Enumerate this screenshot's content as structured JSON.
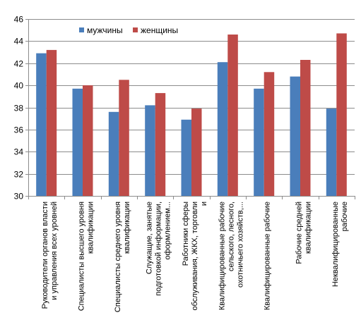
{
  "chart_data": {
    "type": "bar",
    "title": "",
    "xlabel": "",
    "ylabel": "",
    "ylim": [
      30,
      46
    ],
    "yticks": [
      "30",
      "32",
      "34",
      "36",
      "38",
      "40",
      "42",
      "44",
      "46"
    ],
    "grid": true,
    "legend_position": "top-left",
    "categories": [
      [
        "Руководители органов власти",
        "и управления всех уровней"
      ],
      [
        "Специалисты высшего уровня",
        "квалификации"
      ],
      [
        "Специалисты среднего уровня",
        "квалификации"
      ],
      [
        "Служащие, занятые",
        "подготовкой информации,",
        "оформлением..."
      ],
      [
        "Работники сферы",
        "обслуживания, ЖКХ, торговли",
        "и"
      ],
      [
        "Квалифицированные рабочие",
        "сельского, лесного,",
        "охотничьего хозяйств,..."
      ],
      [
        "Квалифицированные рабочие"
      ],
      [
        "Рабочие средней",
        "квалификации"
      ],
      [
        "Неквалифицированные",
        "рабочие"
      ]
    ],
    "series": [
      {
        "name": "мужчины",
        "color": "#4a7ebb",
        "values": [
          42.9,
          39.7,
          37.6,
          38.2,
          36.9,
          42.1,
          39.7,
          40.8,
          37.9
        ]
      },
      {
        "name": "женщины",
        "color": "#be4b48",
        "values": [
          43.2,
          40.0,
          40.5,
          39.3,
          37.9,
          44.6,
          41.2,
          42.3,
          44.7
        ]
      }
    ]
  }
}
